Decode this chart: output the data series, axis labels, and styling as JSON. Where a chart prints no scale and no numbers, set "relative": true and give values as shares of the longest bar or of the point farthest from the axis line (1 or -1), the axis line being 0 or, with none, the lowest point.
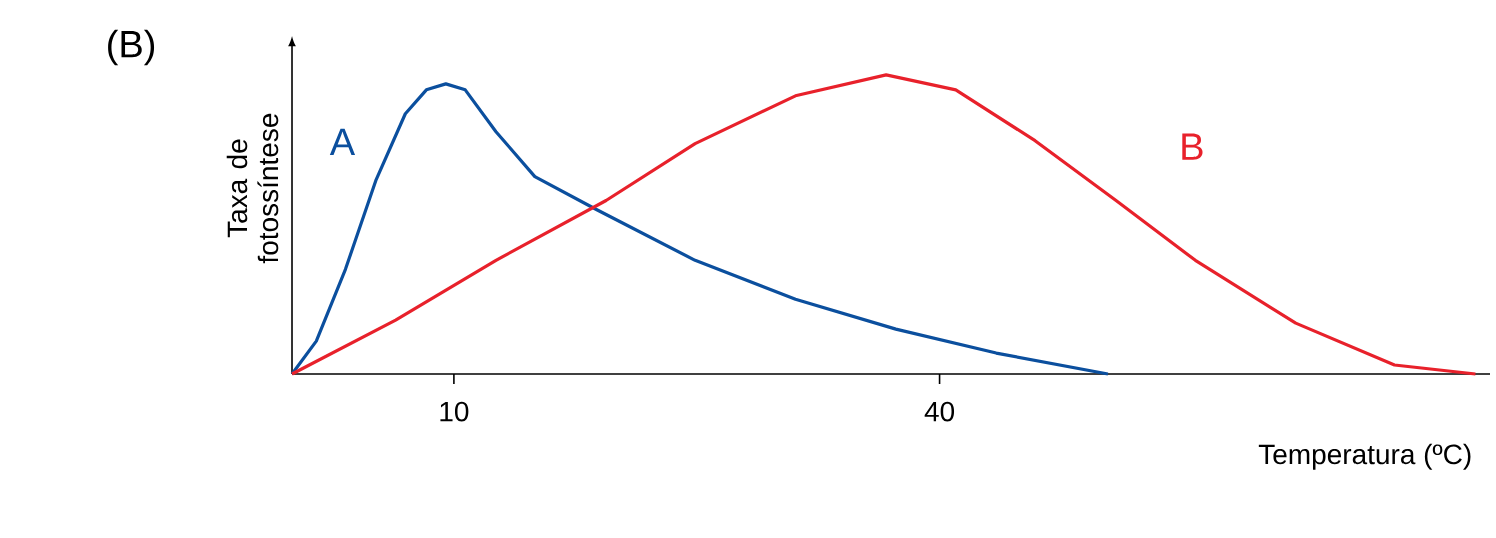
{
  "chart_data": {
    "type": "line",
    "title": "(B)",
    "xlabel": "Temperatura (ºC)",
    "ylabel": "Taxa de fotossíntese",
    "relative": true,
    "xlim": [
      0,
      74
    ],
    "xticks": [
      10,
      40
    ],
    "series": [
      {
        "name": "A",
        "color": "#0b4f9e",
        "x": [
          0,
          1.5,
          3.3,
          5.2,
          7,
          8.3,
          9.5,
          10.7,
          12.6,
          15,
          18.8,
          24.9,
          31.1,
          37.3,
          43.5,
          50.4
        ],
        "values": [
          0,
          0.11,
          0.35,
          0.65,
          0.87,
          0.95,
          0.97,
          0.95,
          0.81,
          0.66,
          0.55,
          0.38,
          0.25,
          0.15,
          0.07,
          0
        ]
      },
      {
        "name": "B",
        "color": "#e8212b",
        "x": [
          0,
          6.4,
          12.6,
          19.4,
          24.9,
          31.1,
          36.7,
          41,
          45.9,
          50.9,
          55.8,
          62,
          68.1,
          73.1
        ],
        "values": [
          0,
          0.18,
          0.38,
          0.58,
          0.77,
          0.93,
          1,
          0.95,
          0.78,
          0.58,
          0.38,
          0.17,
          0.03,
          0
        ]
      }
    ]
  }
}
